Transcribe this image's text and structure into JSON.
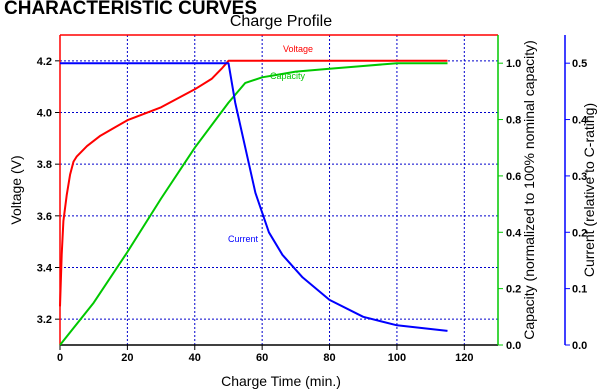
{
  "heading": "CHARACTERISTIC CURVES",
  "chart_data": {
    "type": "line",
    "title": "Charge Profile",
    "xlabel": "Charge Time (min.)",
    "xlim": [
      0,
      130
    ],
    "x_ticks": [
      "0",
      "20",
      "40",
      "60",
      "80",
      "100",
      "120"
    ],
    "x_tick_values": [
      0,
      20,
      40,
      60,
      80,
      100,
      120
    ],
    "grid": true,
    "axes": [
      {
        "id": "voltage",
        "label": "Voltage (V)",
        "side": "left",
        "color": "#ff0000",
        "ylim": [
          3.1,
          4.3
        ],
        "ticks": [
          "3.2",
          "3.4",
          "3.6",
          "3.8",
          "4.0",
          "4.2"
        ],
        "tick_values": [
          3.2,
          3.4,
          3.6,
          3.8,
          4.0,
          4.2
        ]
      },
      {
        "id": "capacity",
        "label": "Capacity (normalized to 100% nominal capacity)",
        "side": "right",
        "color": "#00c800",
        "ylim": [
          0,
          1.1
        ],
        "ticks": [
          "0.0",
          "0.2",
          "0.4",
          "0.6",
          "0.8",
          "1.0"
        ],
        "tick_values": [
          0,
          0.2,
          0.4,
          0.6,
          0.8,
          1.0
        ]
      },
      {
        "id": "current",
        "label": "Current (relative to C-rating)",
        "side": "right",
        "color": "#0000ff",
        "ylim": [
          0,
          0.55
        ],
        "ticks": [
          "0.0",
          "0.1",
          "0.2",
          "0.3",
          "0.4",
          "0.5"
        ],
        "tick_values": [
          0,
          0.1,
          0.2,
          0.3,
          0.4,
          0.5
        ]
      }
    ],
    "series": [
      {
        "name": "Voltage",
        "axis": "voltage",
        "color": "#ff0000",
        "x": [
          0,
          0.5,
          1,
          2,
          3,
          4,
          5,
          8,
          12,
          20,
          30,
          40,
          45,
          48,
          50,
          55,
          60,
          80,
          100,
          115
        ],
        "y": [
          3.25,
          3.45,
          3.58,
          3.68,
          3.76,
          3.81,
          3.83,
          3.87,
          3.91,
          3.97,
          4.02,
          4.09,
          4.13,
          4.17,
          4.2,
          4.2,
          4.2,
          4.2,
          4.2,
          4.2
        ]
      },
      {
        "name": "Capacity",
        "axis": "capacity",
        "color": "#00c800",
        "x": [
          0,
          10,
          20,
          30,
          40,
          50,
          55,
          60,
          65,
          70,
          80,
          90,
          100,
          110,
          115
        ],
        "y": [
          0.0,
          0.15,
          0.33,
          0.52,
          0.7,
          0.86,
          0.93,
          0.95,
          0.96,
          0.97,
          0.98,
          0.99,
          1.0,
          1.0,
          1.0
        ]
      },
      {
        "name": "Current",
        "axis": "current",
        "color": "#0000ff",
        "x": [
          0,
          10,
          20,
          30,
          40,
          45,
          48,
          50,
          52,
          55,
          58,
          62,
          66,
          72,
          80,
          90,
          100,
          115
        ],
        "y": [
          0.5,
          0.5,
          0.5,
          0.5,
          0.5,
          0.5,
          0.5,
          0.5,
          0.43,
          0.35,
          0.27,
          0.2,
          0.16,
          0.12,
          0.08,
          0.05,
          0.035,
          0.025
        ]
      }
    ]
  }
}
